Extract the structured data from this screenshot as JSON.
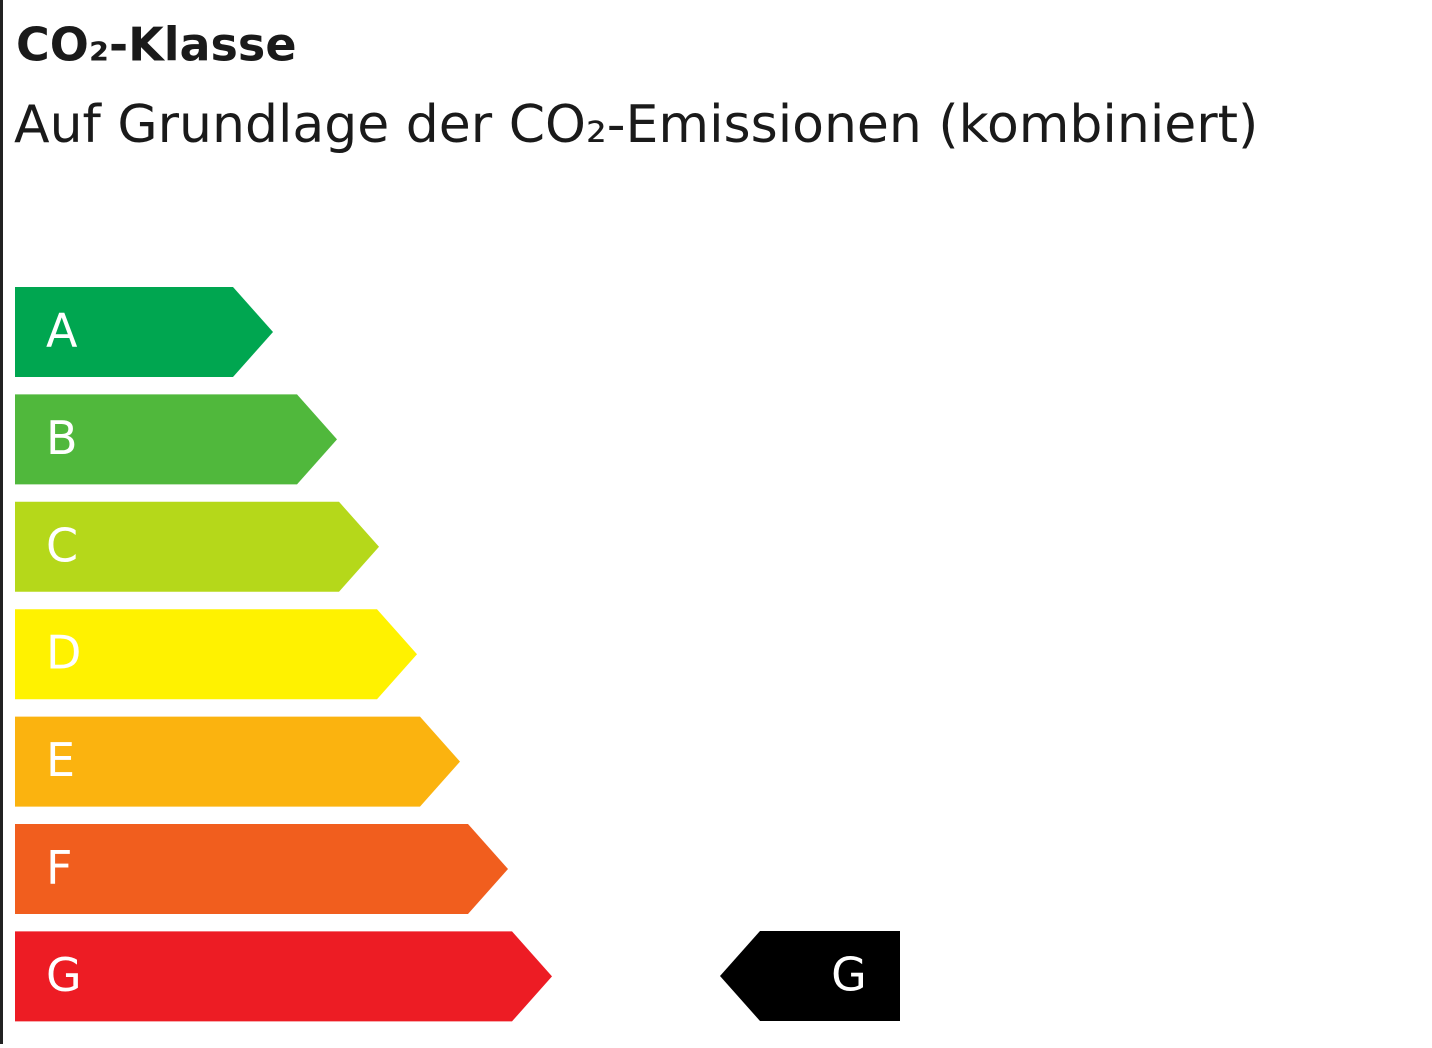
{
  "header": {
    "title": "CO₂-Klasse",
    "subtitle": "Auf Grundlage der CO₂-Emissionen (kombiniert)"
  },
  "classes": [
    {
      "label": "A",
      "color": "#00a650"
    },
    {
      "label": "B",
      "color": "#50b83c"
    },
    {
      "label": "C",
      "color": "#b5d81a"
    },
    {
      "label": "D",
      "color": "#fff200"
    },
    {
      "label": "E",
      "color": "#fbb30f"
    },
    {
      "label": "F",
      "color": "#f15e1e"
    },
    {
      "label": "G",
      "color": "#ed1c24"
    }
  ],
  "indicator": {
    "label": "G",
    "color": "#000000"
  }
}
